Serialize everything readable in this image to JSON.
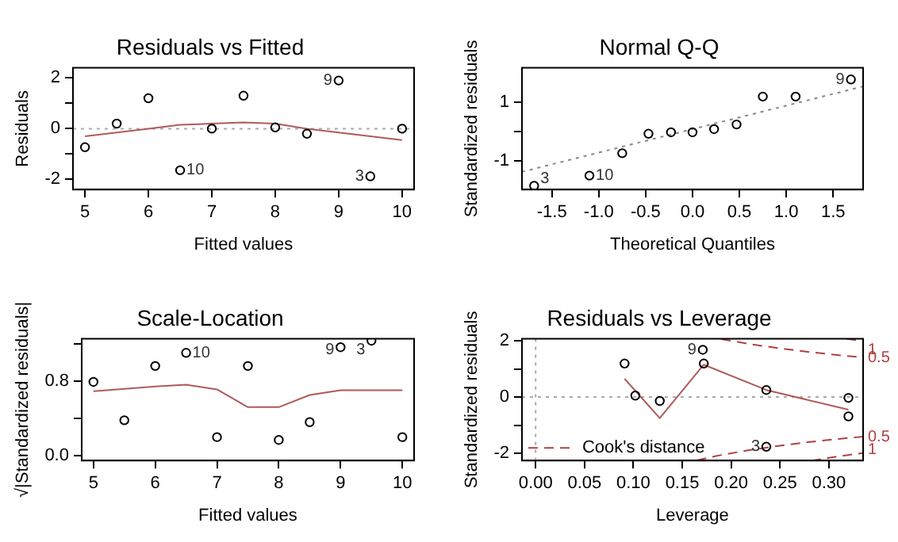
{
  "chart_data": [
    {
      "type": "scatter",
      "title": "Residuals vs Fitted",
      "xlabel": "Fitted values",
      "ylabel": "Residuals",
      "xlim": [
        4.81,
        10.19
      ],
      "xticks": [
        5,
        6,
        7,
        8,
        9,
        10
      ],
      "ylim": [
        -2.4,
        2.4
      ],
      "yticks": [
        {
          "value": -2,
          "label": "-2"
        },
        {
          "value": -1,
          "label": null
        },
        0,
        {
          "value": 1,
          "label": null
        },
        2
      ],
      "series": [
        {
          "color": "#000000",
          "marker": "circle",
          "x": [
            5,
            5.5,
            6,
            6.5,
            7,
            7.5,
            8,
            8.5,
            9,
            9.5,
            10
          ],
          "values": [
            -0.73,
            0.2,
            1.2,
            -1.64,
            0,
            1.3,
            0.05,
            -0.2,
            1.9,
            -1.88,
            0
          ]
        },
        {
          "type": "line",
          "color": "#b05a5a",
          "marker": "none",
          "line_style": "solid",
          "x": [
            5,
            5.5,
            6,
            6.5,
            7,
            7.5,
            8,
            8.5,
            9,
            9.5,
            10
          ],
          "values": [
            -0.3,
            -0.15,
            0,
            0.15,
            0.2,
            0.25,
            0.2,
            0,
            -0.15,
            -0.3,
            -0.45
          ]
        }
      ],
      "ref_lines": [
        {
          "axis": "y",
          "value": 0,
          "color": "#aaaaaa",
          "line_style": "dotted"
        }
      ],
      "annotations": [
        {
          "text": "10",
          "x": 6.5,
          "y": -1.64
        },
        {
          "text": "9",
          "x": 9,
          "y": 1.9
        },
        {
          "text": "3",
          "x": 9.5,
          "y": -1.88
        }
      ]
    },
    {
      "type": "scatter",
      "title": "Normal Q-Q",
      "xlabel": "Theoretical Quantiles",
      "ylabel": "Standardized residuals",
      "xlim": [
        -1.82,
        1.82
      ],
      "xticks": [
        {
          "value": -1.5,
          "label": "-1.5"
        },
        {
          "value": -1,
          "label": "-1.0"
        },
        {
          "value": -0.5,
          "label": "-0.5"
        },
        {
          "value": 0,
          "label": "0.0"
        },
        0.5,
        {
          "value": 1,
          "label": "1.0"
        },
        1.5
      ],
      "ylim": [
        -2,
        2.19
      ],
      "yticks": [
        -1,
        {
          "value": 0,
          "label": null
        },
        1
      ],
      "series": [
        {
          "color": "#000000",
          "marker": "circle",
          "x": [
            -1.69,
            -1.1,
            -0.75,
            -0.47,
            -0.23,
            0,
            0.23,
            0.47,
            0.75,
            1.1,
            1.69
          ],
          "values": [
            -1.87,
            -1.52,
            -0.75,
            -0.08,
            -0.03,
            -0.03,
            0.08,
            0.24,
            1.2,
            1.2,
            1.79
          ]
        },
        {
          "type": "line",
          "color": "#888888",
          "marker": "none",
          "line_style": "dotted",
          "x": [
            -1.82,
            1.82
          ],
          "values": [
            -1.39,
            1.55
          ]
        }
      ],
      "annotations": [
        {
          "text": "3",
          "x": -1.69,
          "y": -1.87
        },
        {
          "text": "10",
          "x": -1.1,
          "y": -1.52
        },
        {
          "text": "9",
          "x": 1.69,
          "y": 1.79
        }
      ]
    },
    {
      "type": "scatter",
      "title": "Scale-Location",
      "xlabel": "Fitted values",
      "ylabel": "√|Standardized residuals|",
      "xlim": [
        4.81,
        10.19
      ],
      "xticks": [
        5,
        6,
        7,
        8,
        9,
        10
      ],
      "ylim": [
        -0.05,
        1.25
      ],
      "yticks": [
        {
          "value": 0,
          "label": "0.0"
        },
        {
          "value": 0.4,
          "label": null
        },
        0.8,
        {
          "value": 1.2,
          "label": null
        }
      ],
      "series": [
        {
          "color": "#000000",
          "marker": "circle",
          "x": [
            5,
            5.5,
            6,
            6.5,
            7,
            7.5,
            8,
            8.5,
            9,
            9.5,
            10
          ],
          "values": [
            0.79,
            0.38,
            0.96,
            1.1,
            0.2,
            0.96,
            0.17,
            0.36,
            1.16,
            1.23,
            0.2
          ]
        },
        {
          "type": "line",
          "color": "#b05a5a",
          "marker": "none",
          "line_style": "solid",
          "x": [
            5,
            6,
            6.5,
            7,
            7.5,
            8,
            8.5,
            9,
            10
          ],
          "values": [
            0.69,
            0.74,
            0.76,
            0.71,
            0.52,
            0.52,
            0.65,
            0.7,
            0.7
          ]
        }
      ],
      "annotations": [
        {
          "text": "10",
          "x": 6.5,
          "y": 1.1
        },
        {
          "text": "9",
          "x": 9,
          "y": 1.16
        },
        {
          "text": "3",
          "x": 9.5,
          "y": 1.23
        }
      ]
    },
    {
      "type": "scatter",
      "title": "Residuals vs Leverage",
      "xlabel": "Leverage",
      "ylabel": "Standardized residuals",
      "legend": "bottom left",
      "xlim": [
        -0.014,
        0.335
      ],
      "xticks": [
        {
          "value": 0,
          "label": "0.00"
        },
        0.05,
        {
          "value": 0.1,
          "label": "0.10"
        },
        0.15,
        {
          "value": 0.2,
          "label": "0.20"
        },
        0.25,
        {
          "value": 0.3,
          "label": "0.30"
        }
      ],
      "ylim": [
        -2.26,
        2.07
      ],
      "yticks": [
        -2,
        {
          "value": -1,
          "label": null
        },
        0,
        {
          "value": 1,
          "label": null
        },
        2
      ],
      "series": [
        {
          "color": "#000000",
          "marker": "circle",
          "x": [
            0.091,
            0.102,
            0.127,
            0.171,
            0.172,
            0.236,
            0.236,
            0.32,
            0.32
          ],
          "values": [
            1.19,
            0.05,
            -0.14,
            1.68,
            1.19,
            0.25,
            -1.77,
            -0.03,
            -0.69
          ]
        },
        {
          "type": "line",
          "color": "#b05a5a",
          "marker": "none",
          "line_style": "solid",
          "x": [
            0.091,
            0.127,
            0.172,
            0.236,
            0.32
          ],
          "values": [
            0.65,
            -0.75,
            1.15,
            0.25,
            -0.45
          ]
        },
        {
          "type": "line",
          "name": "Cook's distance",
          "color": "#b04040",
          "marker": "none",
          "line_style": "dashed",
          "x": [
            0.19,
            0.22,
            0.25,
            0.28,
            0.31,
            0.335
          ],
          "values": [
            2.06,
            1.88,
            1.73,
            1.6,
            1.49,
            1.41
          ]
        },
        {
          "type": "line",
          "color": "#b04040",
          "marker": "none",
          "line_style": "dashed",
          "x": [
            0.165,
            0.19,
            0.22,
            0.25,
            0.28,
            0.31,
            0.335
          ],
          "values": [
            -2.25,
            -2.06,
            -1.88,
            -1.73,
            -1.6,
            -1.49,
            -1.41
          ]
        },
        {
          "type": "line",
          "color": "#b04040",
          "marker": "none",
          "line_style": "dashed",
          "x": [
            0.318,
            0.335
          ],
          "values": [
            2.07,
            1.99
          ]
        },
        {
          "type": "line",
          "color": "#b04040",
          "marker": "none",
          "line_style": "dashed",
          "x": [
            0.282,
            0.31,
            0.335
          ],
          "values": [
            -2.26,
            -2.11,
            -1.99
          ]
        }
      ],
      "ref_lines": [
        {
          "axis": "y",
          "value": 0,
          "color": "#aaaaaa",
          "line_style": "dotted"
        },
        {
          "axis": "x",
          "value": 0,
          "color": "#aaaaaa",
          "line_style": "dotted"
        }
      ],
      "annotations": [
        {
          "text": "9",
          "x": 0.171,
          "y": 1.68
        },
        {
          "text": "3",
          "x": 0.236,
          "y": -1.77
        },
        {
          "text": "1",
          "x": 0.335,
          "y": 1.99
        },
        {
          "text": "0.5",
          "x": 0.335,
          "y": 1.41
        },
        {
          "text": "0.5",
          "x": 0.335,
          "y": -1.41
        },
        {
          "text": "1",
          "x": 0.335,
          "y": -1.99
        }
      ]
    }
  ]
}
